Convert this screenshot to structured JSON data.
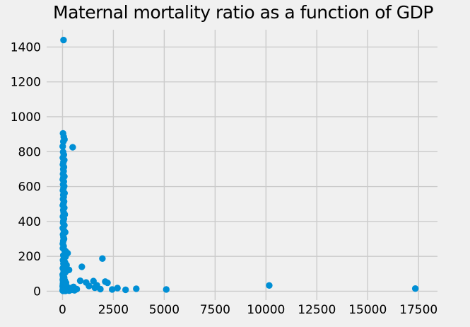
{
  "chart_data": {
    "type": "scatter",
    "title": "Maternal mortality ratio as a function of GDP",
    "xlabel": "",
    "ylabel": "",
    "legend": "none",
    "grid": "on",
    "x_ticks": [
      0,
      2500,
      5000,
      7500,
      10000,
      12500,
      15000,
      17500
    ],
    "y_ticks": [
      0,
      200,
      400,
      600,
      800,
      1000,
      1200,
      1400
    ],
    "xlim": [
      -780,
      18430
    ],
    "ylim": [
      -51,
      1499
    ],
    "colors": {
      "marker": "#008fd5",
      "background": "#f0f0f0",
      "gridline": "#cbcbcb",
      "text": "#000000"
    },
    "points": [
      [
        50,
        1440
      ],
      [
        25,
        905
      ],
      [
        60,
        885
      ],
      [
        95,
        870
      ],
      [
        40,
        858
      ],
      [
        10,
        830
      ],
      [
        500,
        825
      ],
      [
        30,
        798
      ],
      [
        65,
        782
      ],
      [
        15,
        765
      ],
      [
        85,
        752
      ],
      [
        45,
        740
      ],
      [
        20,
        726
      ],
      [
        70,
        712
      ],
      [
        35,
        700
      ],
      [
        55,
        688
      ],
      [
        25,
        672
      ],
      [
        90,
        658
      ],
      [
        40,
        650
      ],
      [
        15,
        640
      ],
      [
        65,
        628
      ],
      [
        30,
        612
      ],
      [
        80,
        602
      ],
      [
        50,
        592
      ],
      [
        20,
        578
      ],
      [
        100,
        562
      ],
      [
        35,
        552
      ],
      [
        60,
        540
      ],
      [
        25,
        528
      ],
      [
        75,
        514
      ],
      [
        45,
        502
      ],
      [
        15,
        492
      ],
      [
        85,
        478
      ],
      [
        35,
        465
      ],
      [
        55,
        452
      ],
      [
        110,
        440
      ],
      [
        20,
        428
      ],
      [
        70,
        415
      ],
      [
        40,
        402
      ],
      [
        30,
        392
      ],
      [
        90,
        378
      ],
      [
        15,
        362
      ],
      [
        60,
        350
      ],
      [
        130,
        338
      ],
      [
        25,
        325
      ],
      [
        45,
        310
      ],
      [
        75,
        300
      ],
      [
        35,
        288
      ],
      [
        15,
        272
      ],
      [
        55,
        258
      ],
      [
        20,
        246
      ],
      [
        95,
        236
      ],
      [
        160,
        228
      ],
      [
        250,
        218
      ],
      [
        40,
        206
      ],
      [
        150,
        198
      ],
      [
        70,
        190
      ],
      [
        25,
        178
      ],
      [
        120,
        166
      ],
      [
        45,
        158
      ],
      [
        200,
        150
      ],
      [
        90,
        142
      ],
      [
        950,
        140
      ],
      [
        15,
        132
      ],
      [
        320,
        122
      ],
      [
        60,
        115
      ],
      [
        140,
        108
      ],
      [
        35,
        100
      ],
      [
        1960,
        187
      ],
      [
        10,
        95
      ],
      [
        55,
        90
      ],
      [
        25,
        84
      ],
      [
        80,
        78
      ],
      [
        40,
        72
      ],
      [
        15,
        66
      ],
      [
        110,
        62
      ],
      [
        65,
        58
      ],
      [
        30,
        52
      ],
      [
        170,
        48
      ],
      [
        90,
        44
      ],
      [
        20,
        40
      ],
      [
        50,
        36
      ],
      [
        130,
        32
      ],
      [
        10,
        28
      ],
      [
        220,
        26
      ],
      [
        70,
        24
      ],
      [
        35,
        20
      ],
      [
        150,
        18
      ],
      [
        95,
        16
      ],
      [
        25,
        14
      ],
      [
        390,
        13
      ],
      [
        55,
        12
      ],
      [
        15,
        10
      ],
      [
        260,
        9
      ],
      [
        120,
        8
      ],
      [
        45,
        7
      ],
      [
        80,
        6
      ],
      [
        30,
        5
      ],
      [
        10,
        4
      ],
      [
        180,
        4
      ],
      [
        60,
        3
      ],
      [
        330,
        3
      ],
      [
        140,
        2
      ],
      [
        25,
        2
      ],
      [
        480,
        8
      ],
      [
        590,
        5
      ],
      [
        700,
        12
      ],
      [
        430,
        18
      ],
      [
        540,
        25
      ],
      [
        870,
        60
      ],
      [
        1160,
        50
      ],
      [
        1300,
        30
      ],
      [
        1520,
        58
      ],
      [
        1590,
        20
      ],
      [
        1690,
        34
      ],
      [
        1860,
        12
      ],
      [
        2100,
        55
      ],
      [
        2210,
        48
      ],
      [
        2440,
        10
      ],
      [
        2700,
        18
      ],
      [
        3100,
        8
      ],
      [
        3625,
        14
      ],
      [
        5100,
        10
      ],
      [
        10160,
        33
      ],
      [
        17340,
        15
      ]
    ]
  }
}
